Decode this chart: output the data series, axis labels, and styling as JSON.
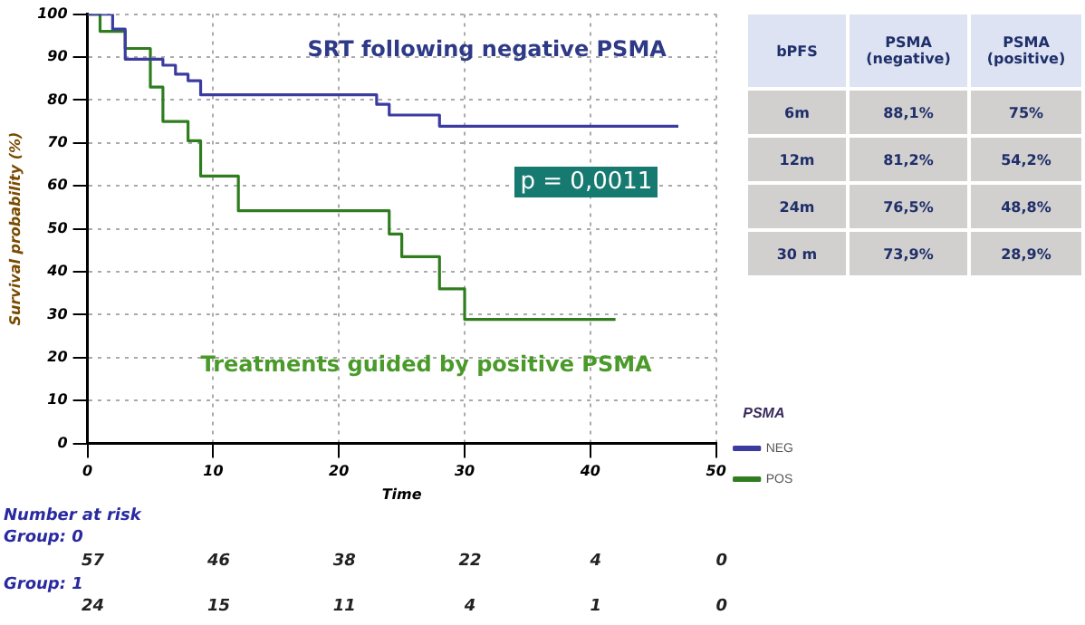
{
  "chart_data": [
    {
      "type": "step",
      "xlabel": "Time",
      "ylabel": "Survival probability (%)",
      "legend_title": "PSMA",
      "legend": "bottom right",
      "grid": true,
      "line_style": "solid",
      "marker": "none",
      "xlim": [
        0,
        50
      ],
      "xticks": [
        0,
        10,
        20,
        30,
        40,
        50
      ],
      "ylim": [
        0,
        100
      ],
      "yticks": [
        0,
        10,
        20,
        30,
        40,
        50,
        60,
        70,
        80,
        90,
        100
      ],
      "series": [
        {
          "name": "NEG",
          "color": "#3c3ca0",
          "x": [
            0,
            2,
            3,
            6,
            7,
            8,
            9,
            23,
            24,
            28,
            47
          ],
          "values": [
            100,
            96.5,
            89.5,
            88.1,
            86,
            84.5,
            81.2,
            79,
            76.5,
            73.9,
            73.9
          ]
        },
        {
          "name": "POS",
          "color": "#2f7d1f",
          "x": [
            0,
            1,
            3,
            5,
            6,
            8,
            9,
            12,
            24,
            25,
            28,
            30,
            42
          ],
          "values": [
            100,
            96,
            92,
            83,
            75,
            70.5,
            62.3,
            54.2,
            48.8,
            43.5,
            36,
            28.9,
            28.9
          ]
        }
      ],
      "annotations": [
        "SRT following negative PSMA",
        "p = 0,0011",
        "Treatments guided by positive PSMA",
        "Number at risk",
        "Group: 0",
        "57",
        "46",
        "38",
        "22",
        "4",
        "0",
        "Group: 1",
        "24",
        "15",
        "11",
        "4",
        "1",
        "0"
      ]
    },
    {
      "type": "other",
      "annotations": [
        "bPFS",
        "PSMA (negative)",
        "PSMA (positive)",
        "6m",
        "88,1%",
        "75%",
        "12m",
        "81,2%",
        "54,2%",
        "24m",
        "76,5%",
        "48,8%",
        "30 m",
        "73,9%",
        "28,9%"
      ]
    }
  ]
}
